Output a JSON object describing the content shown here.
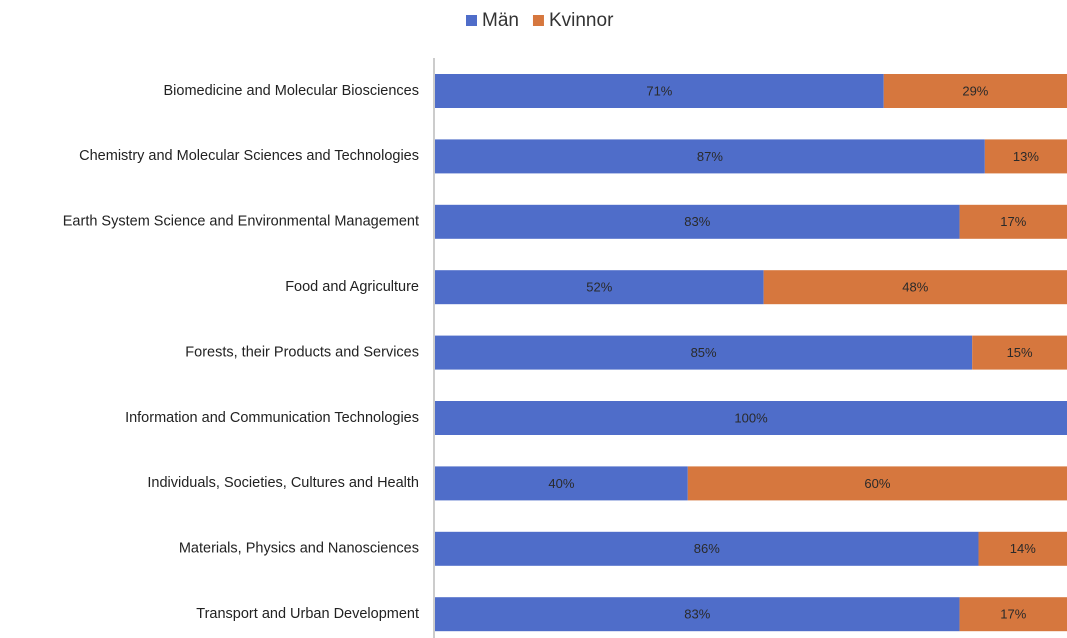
{
  "chart_data": {
    "type": "bar",
    "orientation": "horizontal",
    "stacked": true,
    "categories": [
      "Biomedicine and Molecular Biosciences",
      "Chemistry and Molecular Sciences and Technologies",
      "Earth System Science and Environmental Management",
      "Food and Agriculture",
      "Forests, their Products and Services",
      "Information and Communication Technologies",
      "Individuals, Societies, Cultures and Health",
      "Materials, Physics and Nanosciences",
      "Transport and Urban Development"
    ],
    "series": [
      {
        "name": "Män",
        "color": "#4f6dc9",
        "values": [
          71,
          87,
          83,
          52,
          85,
          100,
          40,
          86,
          83
        ],
        "value_labels": [
          "71%",
          "87%",
          "83%",
          "52%",
          "85%",
          "100%",
          "40%",
          "86%",
          "83%"
        ]
      },
      {
        "name": "Kvinnor",
        "color": "#d6773e",
        "values": [
          29,
          13,
          17,
          48,
          15,
          0,
          60,
          14,
          17
        ],
        "value_labels": [
          "29%",
          "13%",
          "17%",
          "48%",
          "15%",
          null,
          "60%",
          "14%",
          "17%"
        ]
      }
    ],
    "xlim": [
      0,
      100
    ],
    "legend": "top"
  }
}
